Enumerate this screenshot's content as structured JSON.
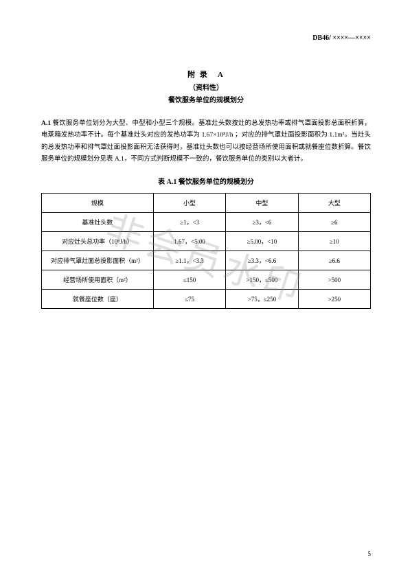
{
  "doc_code": "DB46/ ××××—××××",
  "appendix": {
    "title": "附 录　A",
    "sub": "（资料性）",
    "name": "餐饮服务单位的规模划分"
  },
  "section_a1_num": "A.1",
  "section_a1_text": "餐饮服务单位划分为大型、中型和小型三个规模。基准灶头数按灶的总发热功率或排气罩面投影总面积折算，电蒸箱发热功率不计。每个基准灶头对应的发热功率为 1.67×10⁸J/h ；对应的排气罩灶面投影面积为 1.1m²。当灶头的总发热功率和排气罩灶面投影面积无法获得时，基准灶头数也可以按经营场所使用面积或就餐座位数折算。餐饮服务单位的规模划分见表 A.1，不同方式判断规模不一致的，餐饮服务单位的类别以大者计。",
  "table": {
    "title": "表 A.1 餐饮服务单位的规模划分",
    "columns": [
      "规模",
      "小型",
      "中型",
      "大型"
    ],
    "rows": [
      {
        "label": "基准灶头数",
        "small": "≥1，<3",
        "mid": "≥3，<6",
        "large": "≥6"
      },
      {
        "label": "对应灶头总功率（10⁸J/h）",
        "small": "1.67，<5.00",
        "mid": "≥5.00，<10",
        "large": "≥10"
      },
      {
        "label": "对应排气罩灶面总投影面积（m²）",
        "small": "≥1.1，<3.3",
        "mid": "≥3.3，<6.6",
        "large": "≥6.6"
      },
      {
        "label": "经营场所使用面积（m²）",
        "small": "≤150",
        "mid": ">150，≤500",
        "large": ">500"
      },
      {
        "label": "就餐座位数（座）",
        "small": "≤75",
        "mid": ">75，≤250",
        "large": ">250"
      }
    ]
  },
  "watermark": "非会员水印",
  "page_num": "5"
}
